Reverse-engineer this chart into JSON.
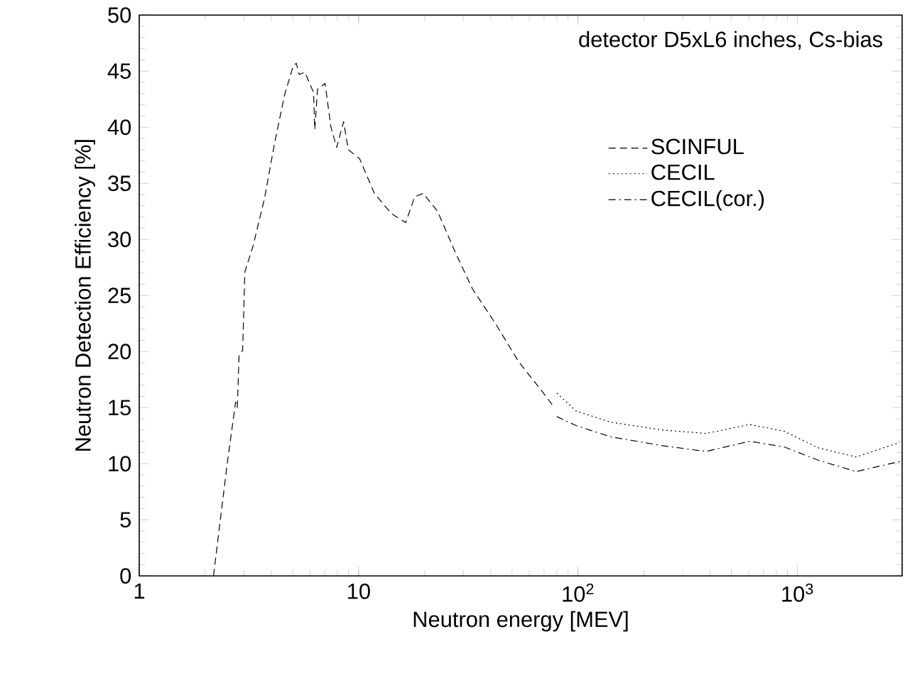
{
  "chart_data": {
    "type": "line",
    "xlabel": "Neutron energy [MEV]",
    "ylabel": "Neutron Detection Efficiency [%]",
    "annotations": [
      "detector D5xL6 inches, Cs-bias"
    ],
    "log": "x",
    "xlim": [
      1,
      3000
    ],
    "ylim": [
      0,
      50
    ],
    "xticks": [
      1,
      10,
      {
        "value": 100,
        "label": "10$^{2}$"
      },
      {
        "value": 1000,
        "label": "10$^{3}$"
      }
    ],
    "yticks": [
      0,
      5,
      10,
      15,
      20,
      25,
      30,
      35,
      40,
      45,
      50
    ],
    "grid": false,
    "legend": "top right",
    "marker": "none",
    "series": [
      {
        "name": "SCINFUL",
        "color": "#000000",
        "line_style": "dashed",
        "x": [
          2.18,
          2.51,
          2.75,
          2.8,
          2.85,
          2.96,
          3.03,
          3.3,
          3.72,
          4.15,
          4.6,
          5.04,
          5.2,
          5.36,
          5.69,
          6.23,
          6.31,
          6.5,
          7.03,
          7.48,
          7.94,
          8.54,
          8.97,
          10.1,
          11.8,
          14.1,
          16.4,
          18.0,
          19.7,
          22.9,
          27.5,
          33.0,
          42.0,
          53.6,
          68.3,
          78.0
        ],
        "values": [
          0,
          9.8,
          15.5,
          15.0,
          19.6,
          20.1,
          27.1,
          29.4,
          33.6,
          38.7,
          42.9,
          45.5,
          45.7,
          44.7,
          44.9,
          43.1,
          39.8,
          43.4,
          43.9,
          40.0,
          38.2,
          40.5,
          38.0,
          37.2,
          34.1,
          32.3,
          31.5,
          33.8,
          34.1,
          32.5,
          28.9,
          25.6,
          22.5,
          19.1,
          16.5,
          15.0
        ]
      },
      {
        "name": "CECIL",
        "color": "#000000",
        "line_style": "dotted",
        "x": [
          80,
          98,
          141,
          244,
          384,
          605,
          869,
          1250,
          1854,
          2923
        ],
        "values": [
          16.3,
          14.7,
          13.7,
          13.0,
          12.7,
          13.5,
          12.9,
          11.4,
          10.6,
          11.9
        ]
      },
      {
        "name": "CECIL(cor.)",
        "color": "#000000",
        "line_style": "dashdot",
        "x": [
          80,
          98,
          141,
          244,
          384,
          605,
          869,
          1250,
          1854,
          2923
        ],
        "values": [
          14.2,
          13.4,
          12.4,
          11.6,
          11.1,
          12.0,
          11.5,
          10.3,
          9.3,
          10.2
        ]
      }
    ]
  }
}
